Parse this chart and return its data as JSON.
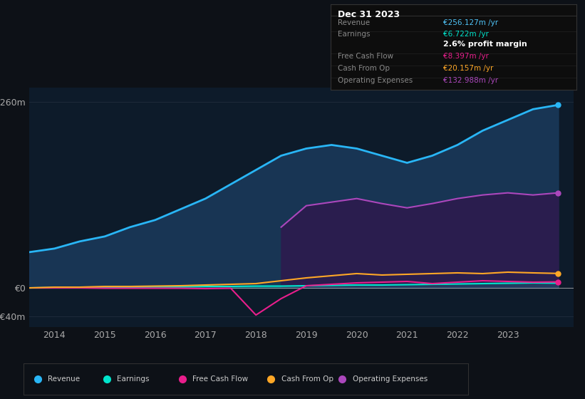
{
  "background_color": "#0d1117",
  "plot_bg_color": "#0d1b2a",
  "title": "Dec 31 2023",
  "info_box_rows": [
    {
      "label": "Revenue",
      "value": "€256.127m /yr",
      "value_color": "#4fc3f7"
    },
    {
      "label": "Earnings",
      "value": "€6.722m /yr",
      "value_color": "#00e5cc"
    },
    {
      "label": "",
      "value": "2.6% profit margin",
      "value_color": "#ffffff",
      "bold": true
    },
    {
      "label": "Free Cash Flow",
      "value": "€8.397m /yr",
      "value_color": "#e91e8c"
    },
    {
      "label": "Cash From Op",
      "value": "€20.157m /yr",
      "value_color": "#ffa726"
    },
    {
      "label": "Operating Expenses",
      "value": "€132.988m /yr",
      "value_color": "#ab47bc"
    }
  ],
  "years": [
    2013.5,
    2014.0,
    2014.5,
    2015.0,
    2015.5,
    2016.0,
    2016.5,
    2017.0,
    2017.5,
    2018.0,
    2018.5,
    2019.0,
    2019.5,
    2020.0,
    2020.5,
    2021.0,
    2021.5,
    2022.0,
    2022.5,
    2023.0,
    2023.5,
    2024.0
  ],
  "revenue": [
    50,
    55,
    65,
    72,
    85,
    95,
    110,
    125,
    145,
    165,
    185,
    195,
    200,
    195,
    185,
    175,
    185,
    200,
    220,
    235,
    250,
    256
  ],
  "earnings": [
    0,
    0.5,
    0.5,
    1,
    1,
    1.5,
    1.5,
    2,
    2,
    2.5,
    2.5,
    3,
    3.5,
    4,
    4,
    4.5,
    5,
    5.5,
    6,
    6.5,
    7,
    6.7
  ],
  "free_cash_flow": [
    0,
    0,
    0,
    -0.5,
    -0.5,
    -0.5,
    -0.5,
    -1,
    -0.5,
    -38,
    -15,
    3,
    5,
    7,
    8,
    9,
    6,
    8,
    10,
    9,
    8,
    8.4
  ],
  "cash_from_op": [
    0,
    1,
    1,
    2,
    2,
    2.5,
    3,
    4,
    5,
    6,
    10,
    14,
    17,
    20,
    18,
    19,
    20,
    21,
    20,
    22,
    21,
    20.2
  ],
  "operating_expenses": [
    0,
    0,
    0,
    0,
    0,
    0,
    0,
    0,
    0,
    0,
    85,
    115,
    120,
    125,
    118,
    112,
    118,
    125,
    130,
    133,
    130,
    133
  ],
  "revenue_color": "#29b6f6",
  "revenue_fill": "#1a3a5c",
  "earnings_color": "#00e5cc",
  "free_cash_flow_color": "#e91e8c",
  "cash_from_op_color": "#ffa726",
  "operating_expenses_color": "#ab47bc",
  "operating_expenses_fill": "#2d1b4e",
  "ylim": [
    -55,
    280
  ],
  "yticks": [
    -40,
    0,
    260
  ],
  "ytick_labels": [
    "-€40m",
    "€0",
    "€260m"
  ],
  "xtick_years": [
    2014,
    2015,
    2016,
    2017,
    2018,
    2019,
    2020,
    2021,
    2022,
    2023
  ],
  "grid_color": "#1e2a3a",
  "legend_items": [
    {
      "label": "Revenue",
      "color": "#29b6f6"
    },
    {
      "label": "Earnings",
      "color": "#00e5cc"
    },
    {
      "label": "Free Cash Flow",
      "color": "#e91e8c"
    },
    {
      "label": "Cash From Op",
      "color": "#ffa726"
    },
    {
      "label": "Operating Expenses",
      "color": "#ab47bc"
    }
  ]
}
